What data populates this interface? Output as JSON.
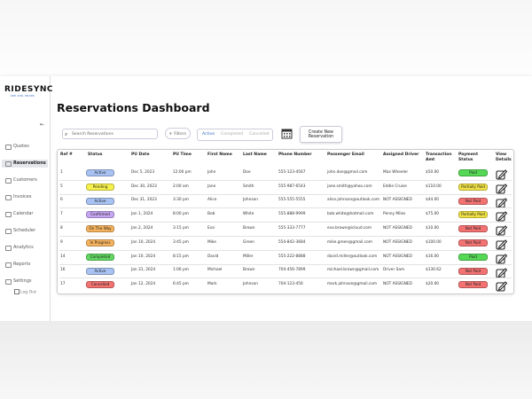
{
  "sidebar": {
    "logo": "RIDESYNC",
    "tagline": "RIDE. SYNC. DELIVER.",
    "items": [
      "Quotes",
      "Reservations",
      "Customers",
      "Invoices",
      "Calendar",
      "Scheduler",
      "Analytics",
      "Reports",
      "Settings"
    ],
    "logout": "Log Out"
  },
  "main": {
    "title": "Reservations Dashboard",
    "search_placeholder": "Search Reservations",
    "filters": "Filters",
    "tabs": [
      "Active",
      "Completed",
      "Cancelled"
    ],
    "create_button": "Create New Reservation"
  },
  "table": {
    "headers": [
      "Ref #",
      "Status",
      "PU Date",
      "PU Time",
      "First Name",
      "Last Name",
      "Phone Number",
      "Passenger Email",
      "Assigned Driver",
      "Transaction Amt",
      "Payment Status",
      "View Details"
    ],
    "rows": [
      [
        "1",
        "Active",
        "Dec 5, 2023",
        "12:00 pm",
        "John",
        "Doe",
        "555-123-4567",
        "john.doe@gmail.com",
        "Max Wheeler",
        "$50.00",
        "Paid"
      ],
      [
        "5",
        "Pending",
        "Dec 30, 2023",
        "2:00 am",
        "Jane",
        "Smith",
        "555-987-6543",
        "jane.smith@yahoo.com",
        "Eddie Cruise",
        "$110.00",
        "Partially Paid"
      ],
      [
        "6",
        "Active",
        "Dec 31, 2023",
        "3:30 pm",
        "Alice",
        "Johnson",
        "555-555-5555",
        "alice.johnson@outlook.com",
        "NOT ASSIGNED",
        "$44.00",
        "Not Paid"
      ],
      [
        "7",
        "Confirmed",
        "Jan 1, 2024",
        "8:00 pm",
        "Bob",
        "White",
        "555-888-9999",
        "bob.white@hotmail.com",
        "Penny Miles",
        "$75.00",
        "Partially Paid"
      ],
      [
        "8",
        "On The Way",
        "Jan 2, 2024",
        "3:15 pm",
        "Eva",
        "Brown",
        "555-333-7777",
        "eva.brown@icloud.com",
        "NOT ASSIGNED",
        "$10.00",
        "Not Paid"
      ],
      [
        "9",
        "In Progress",
        "Jan 10, 2024",
        "3:45 pm",
        "Mike",
        "Green",
        "554-842-3684",
        "mike.green@gmail.com",
        "NOT ASSIGNED",
        "$100.00",
        "Not Paid"
      ],
      [
        "14",
        "Completed",
        "Jan 10, 2024",
        "8:15 pm",
        "David",
        "Miller",
        "555-222-8888",
        "david.miller@outlook.com",
        "NOT ASSIGNED",
        "$16.00",
        "Paid"
      ],
      [
        "16",
        "Active",
        "Jan 31, 2024",
        "1:06 pm",
        "Michael",
        "Brown",
        "704-456-7899",
        "michael.brown@gmail.com",
        "Driver Sam",
        "$130.62",
        "Not Paid"
      ],
      [
        "17",
        "Cancelled",
        "Jan 12, 2024",
        "6:45 pm",
        "Mark",
        "Johnson",
        "704-123-456",
        "mark.johnson@gmail.com",
        "NOT ASSIGNED",
        "$20.00",
        "Not Paid"
      ]
    ]
  }
}
